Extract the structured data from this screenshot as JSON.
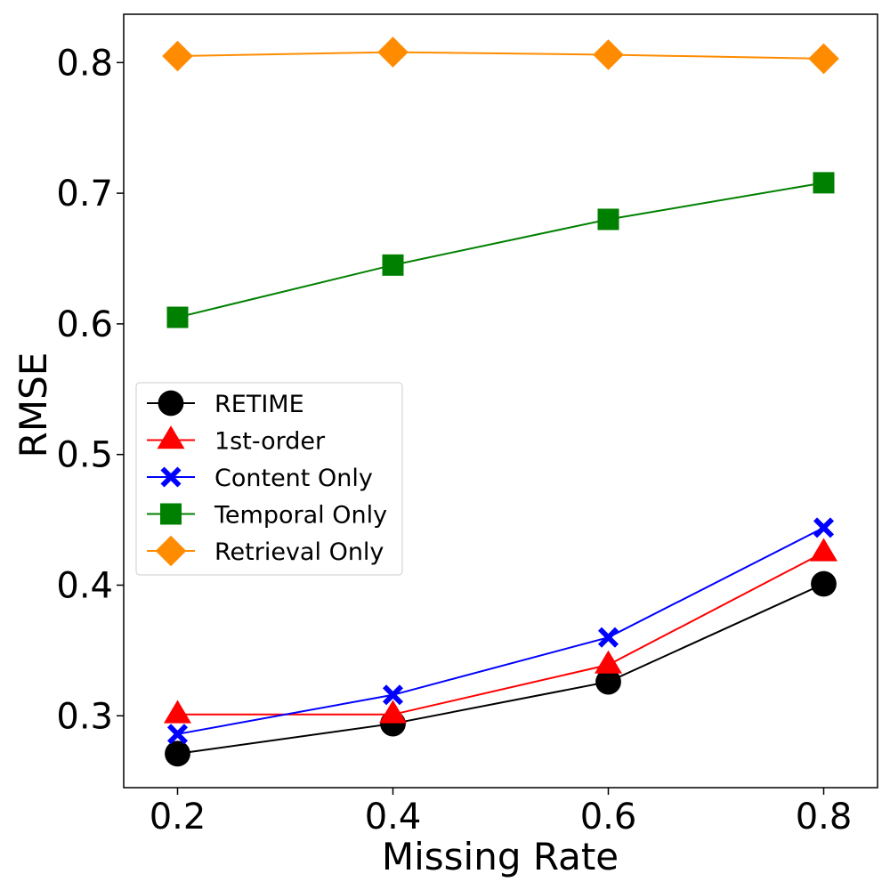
{
  "chart_data": {
    "type": "line",
    "title": "",
    "xlabel": "Missing Rate",
    "ylabel": "RMSE",
    "x": [
      0.2,
      0.4,
      0.6,
      0.8
    ],
    "xticks": [
      "0.2",
      "0.4",
      "0.6",
      "0.8"
    ],
    "yticks": [
      "0.3",
      "0.4",
      "0.5",
      "0.6",
      "0.7",
      "0.8"
    ],
    "xlim": [
      0.15,
      0.85
    ],
    "ylim": [
      0.245,
      0.837
    ],
    "grid": false,
    "legend_position": "center-left",
    "series": [
      {
        "name": "RETIME",
        "color": "#000000",
        "marker": "circle",
        "values": [
          0.271,
          0.294,
          0.326,
          0.401
        ]
      },
      {
        "name": "1st-order",
        "color": "#ff0000",
        "marker": "triangle",
        "values": [
          0.301,
          0.301,
          0.339,
          0.425
        ]
      },
      {
        "name": "Content Only",
        "color": "#0000ff",
        "marker": "x",
        "values": [
          0.286,
          0.316,
          0.36,
          0.444
        ]
      },
      {
        "name": "Temporal Only",
        "color": "#008000",
        "marker": "square",
        "values": [
          0.605,
          0.645,
          0.68,
          0.708
        ]
      },
      {
        "name": "Retrieval Only",
        "color": "#ff8c00",
        "marker": "diamond",
        "values": [
          0.805,
          0.808,
          0.806,
          0.803
        ]
      }
    ]
  }
}
